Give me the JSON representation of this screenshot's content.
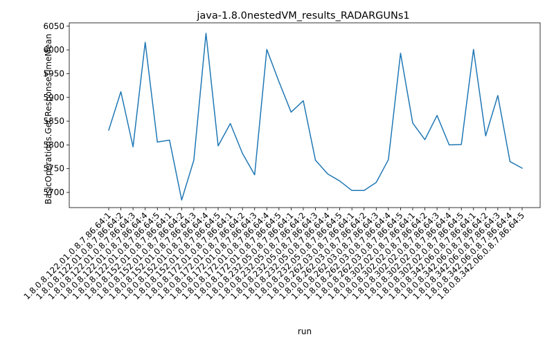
{
  "chart_data": {
    "type": "line",
    "title": "java-1.8.0nestedVM_results_RADARGUNs1",
    "xlabel": "run",
    "ylabel": "BasicOperations.Get.ResponseTimeMean",
    "ylim": [
      5668,
      6057
    ],
    "yticks": [
      5700,
      5750,
      5800,
      5850,
      5900,
      5950,
      6000,
      6050
    ],
    "grid": false,
    "line_color": "#1f77b4",
    "categories": [
      "1.8.0.8.122.01.0.8.7.86.64:1",
      "1.8.0.8.122.01.0.8.7.86.64:2",
      "1.8.0.8.122.01.0.8.7.86.64:3",
      "1.8.0.8.122.01.0.8.7.86.64:4",
      "1.8.0.8.122.01.0.8.7.86.64:5",
      "1.8.0.8.152.01.0.8.7.86.64:1",
      "1.8.0.8.152.01.0.8.7.86.64:2",
      "1.8.0.8.152.01.0.8.7.86.64:3",
      "1.8.0.8.152.01.0.8.7.86.64:4",
      "1.8.0.8.152.01.0.8.7.86.64:5",
      "1.8.0.8.172.01.0.8.7.86.64:1",
      "1.8.0.8.172.01.0.8.7.86.64:2",
      "1.8.0.8.172.01.0.8.7.86.64:3",
      "1.8.0.8.172.01.0.8.7.86.64:4",
      "1.8.0.8.172.01.0.8.7.86.64:5",
      "1.8.0.8.232.05.0.8.7.86.64:1",
      "1.8.0.8.232.05.0.8.7.86.64:2",
      "1.8.0.8.232.05.0.8.7.86.64:3",
      "1.8.0.8.232.05.0.8.7.86.64:4",
      "1.8.0.8.232.05.0.8.7.86.64:5",
      "1.8.0.8.262.03.0.8.7.86.64:1",
      "1.8.0.8.262.03.0.8.7.86.64:2",
      "1.8.0.8.262.03.0.8.7.86.64:3",
      "1.8.0.8.262.03.0.8.7.86.64:4",
      "1.8.0.8.262.03.0.8.7.86.64:5",
      "1.8.0.8.302.02.0.8.7.86.64:1",
      "1.8.0.8.302.02.0.8.7.86.64:2",
      "1.8.0.8.302.02.0.8.7.86.64:3",
      "1.8.0.8.302.02.0.8.7.86.64:4",
      "1.8.0.8.302.02.0.8.7.86.64:5",
      "1.8.0.8.342.06.0.8.7.86.64:1",
      "1.8.0.8.342.06.0.8.7.86.64:2",
      "1.8.0.8.342.06.0.8.7.86.64:3",
      "1.8.0.8.342.06.0.8.7.86.64:4",
      "1.8.0.8.342.06.0.8.7.86.64:5"
    ],
    "values": [
      5831,
      5912,
      5796,
      6016,
      5806,
      5810,
      5684,
      5768,
      6035,
      5798,
      5845,
      5782,
      5737,
      6001,
      5933,
      5869,
      5893,
      5768,
      5739,
      5724,
      5704,
      5704,
      5721,
      5769,
      5993,
      5846,
      5811,
      5862,
      5800,
      5801,
      6001,
      5819,
      5904,
      5765,
      5751
    ]
  }
}
